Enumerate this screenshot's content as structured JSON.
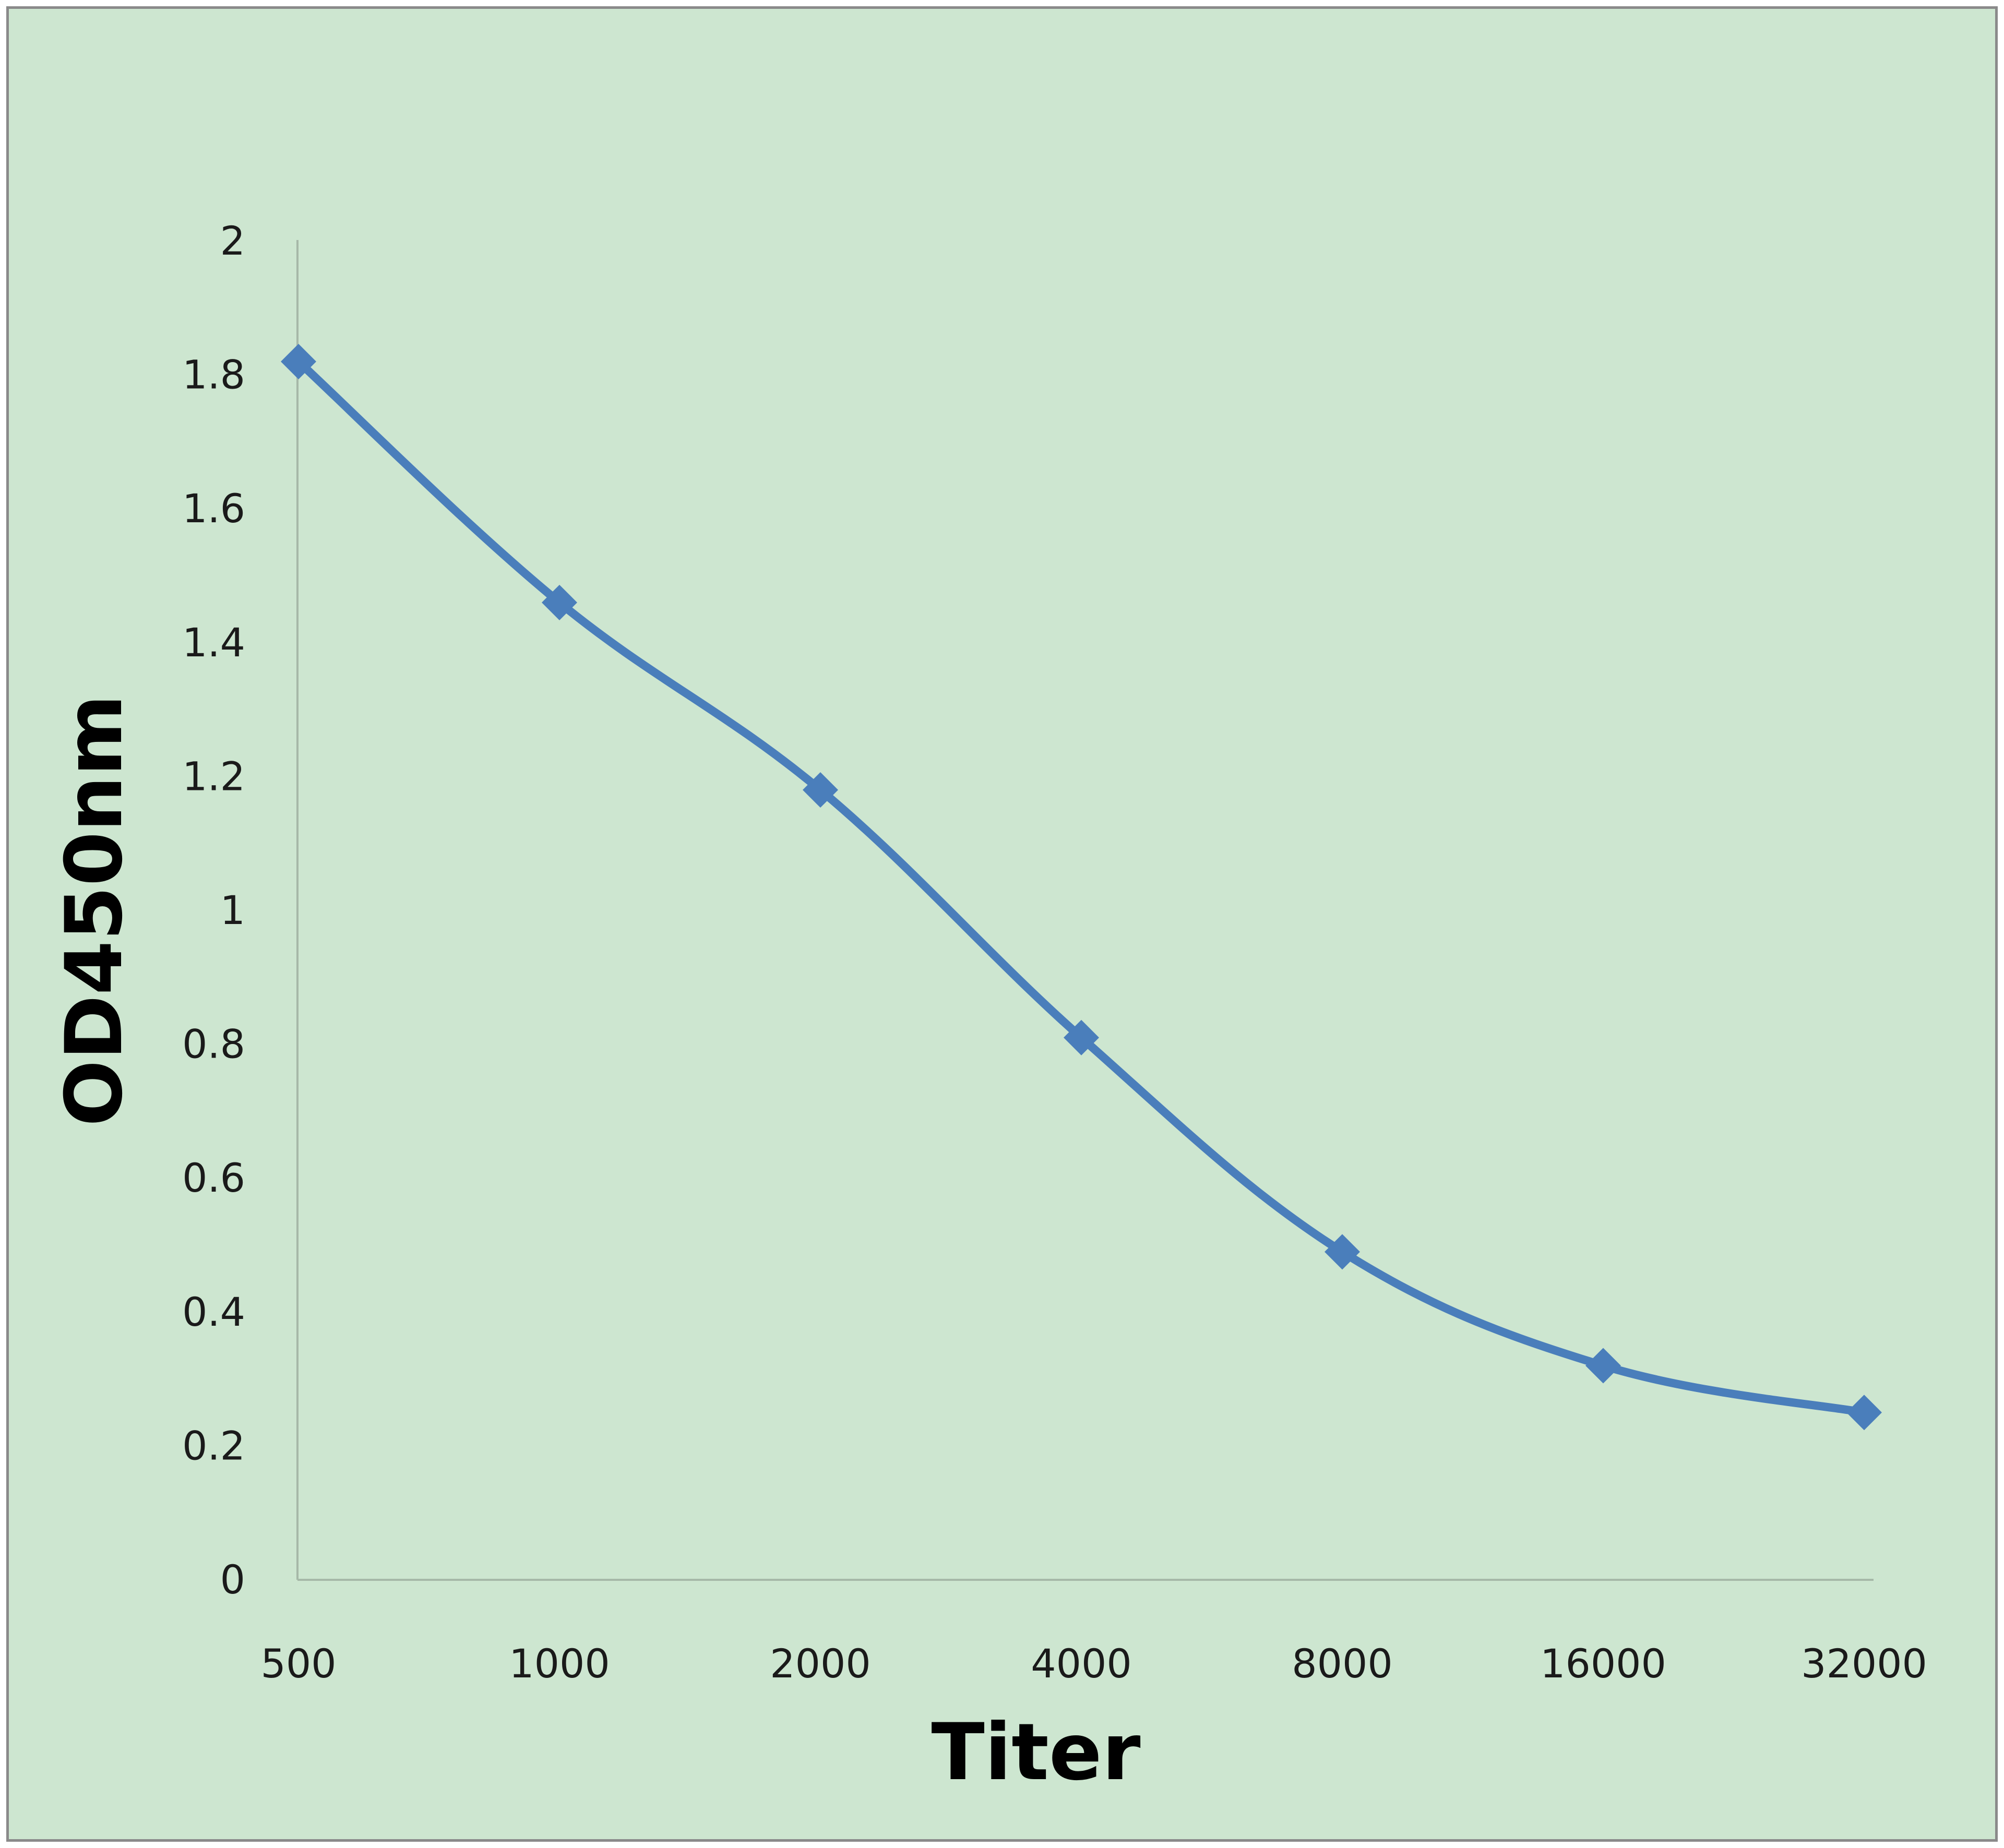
{
  "chart_data": {
    "type": "line",
    "xlabel": "Titer",
    "ylabel": "OD450nm",
    "categories": [
      "500",
      "1000",
      "2000",
      "4000",
      "8000",
      "16000",
      "32000"
    ],
    "series": [
      {
        "values": [
          1.82,
          1.46,
          1.18,
          0.81,
          0.49,
          0.32,
          0.25
        ]
      }
    ],
    "ylim": [
      0,
      2
    ],
    "y_ticks": [
      "0",
      "0.2",
      "0.4",
      "0.6",
      "0.8",
      "1",
      "1.2",
      "1.4",
      "1.6",
      "1.8",
      "2"
    ],
    "grid": false,
    "legend": "none",
    "marker": "diamond",
    "colors": {
      "background": "#cde6d0",
      "series": "#4a7ebb",
      "axis": "#a6b8a8",
      "frame": "#8a8a8a"
    }
  }
}
